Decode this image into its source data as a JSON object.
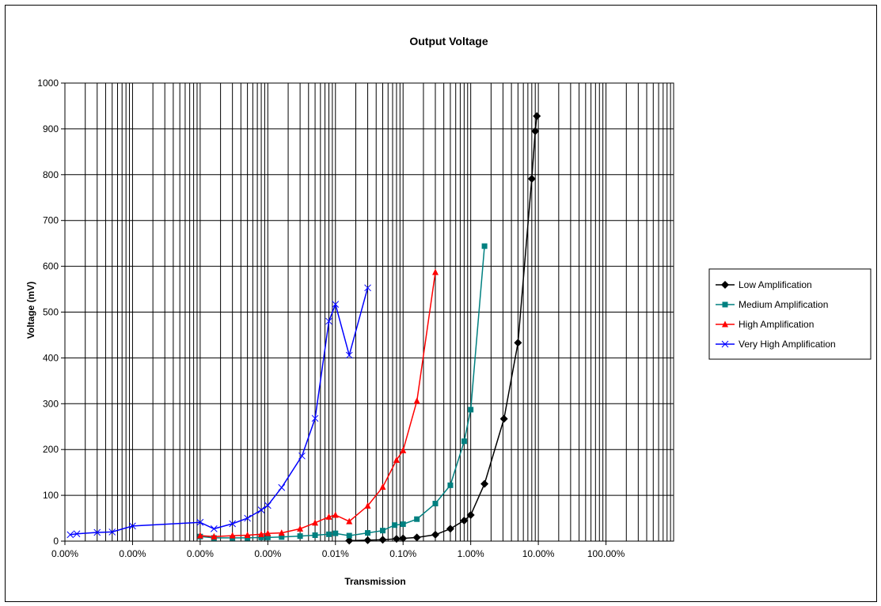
{
  "chart_data": {
    "type": "line",
    "title": "Output Voltage",
    "xlabel": "Transmission",
    "ylabel": "Voltage (mV)",
    "x_scale": "log",
    "x_tick_labels": [
      "0.00%",
      "0.00%",
      "0.00%",
      "0.00%",
      "0.01%",
      "0.10%",
      "1.00%",
      "10.00%",
      "100.00%"
    ],
    "xlim": [
      "0.00%",
      "100.00%"
    ],
    "ylim": [
      0,
      1000
    ],
    "y_ticks": [
      0,
      100,
      200,
      300,
      400,
      500,
      600,
      700,
      800,
      900,
      1000
    ],
    "grid": true,
    "legend_position": "right",
    "series": [
      {
        "name": "Low Amplification",
        "color": "#000000",
        "marker": "diamond",
        "x": [
          0.0016,
          0.003,
          0.005,
          0.008,
          0.01,
          0.016,
          0.03,
          0.05,
          0.08,
          0.1,
          0.16,
          0.31,
          0.5,
          0.8,
          0.9,
          0.95
        ],
        "y": [
          1,
          2,
          3,
          5,
          6,
          8,
          14,
          27,
          45,
          57,
          125,
          267,
          433,
          791,
          895,
          928
        ]
      },
      {
        "name": "Medium Amplification",
        "color": "#008080",
        "marker": "square",
        "x": [
          1e-05,
          1.6e-05,
          3e-05,
          5e-05,
          8e-05,
          0.0001,
          0.00016,
          0.0003,
          0.0005,
          0.0008,
          0.001,
          0.0016,
          0.003,
          0.005,
          0.0075,
          0.01,
          0.016,
          0.03,
          0.05,
          0.08,
          0.1,
          0.16
        ],
        "y": [
          10,
          7,
          7,
          7,
          8,
          8,
          9,
          11,
          13,
          15,
          17,
          12,
          18,
          23,
          35,
          37,
          48,
          82,
          122,
          218,
          287,
          644
        ]
      },
      {
        "name": "High Amplification",
        "color": "#ff0000",
        "marker": "triangle",
        "x": [
          1e-05,
          1.6e-05,
          3e-05,
          5e-05,
          8e-05,
          0.0001,
          0.00016,
          0.0003,
          0.0005,
          0.0008,
          0.001,
          0.0016,
          0.003,
          0.005,
          0.008,
          0.01,
          0.016,
          0.03
        ],
        "y": [
          12,
          10,
          12,
          13,
          15,
          17,
          18,
          27,
          40,
          53,
          57,
          43,
          77,
          118,
          177,
          198,
          306,
          587
        ]
      },
      {
        "name": "Very High Amplification",
        "color": "#0000ff",
        "marker": "x",
        "x": [
          1.2e-07,
          1.5e-07,
          3e-07,
          5e-07,
          1e-06,
          1e-05,
          1.6e-05,
          3e-05,
          5e-05,
          8e-05,
          0.0001,
          0.00016,
          0.00032,
          0.0005,
          0.0008,
          0.001,
          0.0016,
          0.003
        ],
        "y": [
          14,
          16,
          19,
          20,
          33,
          41,
          27,
          38,
          50,
          68,
          78,
          117,
          186,
          268,
          480,
          517,
          406,
          553
        ]
      }
    ]
  }
}
